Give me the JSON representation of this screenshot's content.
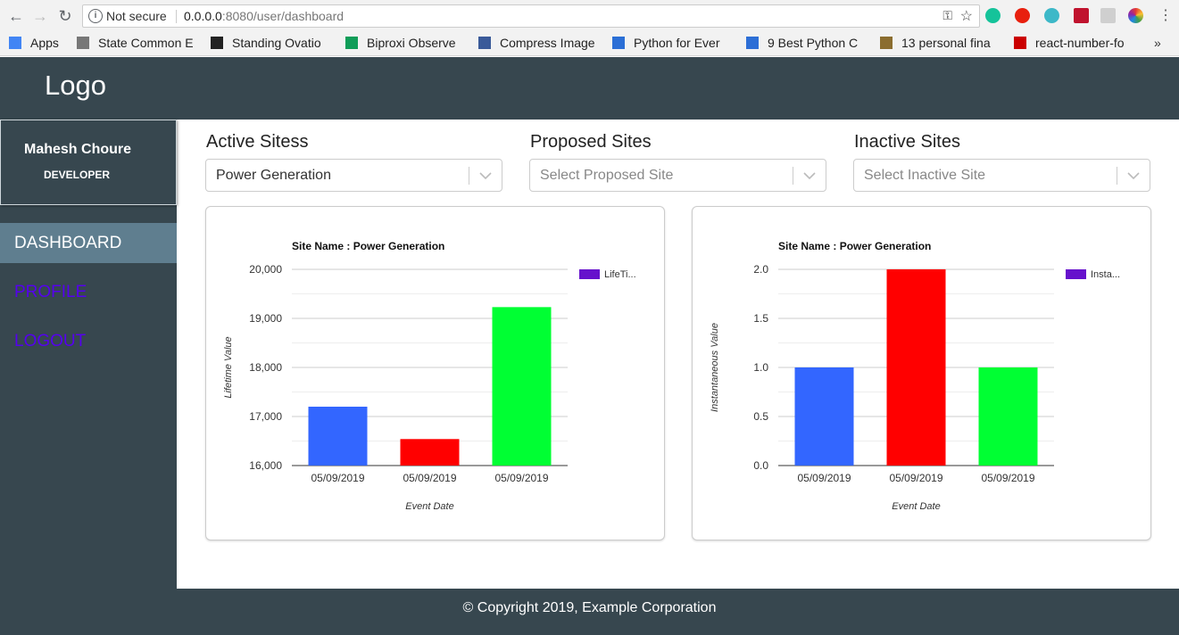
{
  "browser": {
    "security": "Not secure",
    "url_host": "0.0.0.0",
    "url_rest": ":8080/user/dashboard",
    "bookmarks": [
      {
        "label": "Apps",
        "icon": "apps-grid-icon",
        "color": "#4285f4"
      },
      {
        "label": "State Common E",
        "icon": "emblem-icon",
        "color": "#777777"
      },
      {
        "label": "Standing Ovatio",
        "icon": "six-icon",
        "color": "#222222"
      },
      {
        "label": "Biproxi Observe",
        "icon": "sheets-icon",
        "color": "#0f9d58"
      },
      {
        "label": "Compress Image",
        "icon": "image-icon",
        "color": "#3a5a99"
      },
      {
        "label": "Python for Ever",
        "icon": "infinity-icon",
        "color": "#2b6fd6"
      },
      {
        "label": "9 Best Python C",
        "icon": "dd-icon",
        "color": "#2d6fd6"
      },
      {
        "label": "13 personal fina",
        "icon": "et-icon",
        "color": "#8b6d2f"
      },
      {
        "label": "react-number-fo",
        "icon": "npm-icon",
        "color": "#cb0000"
      }
    ],
    "more": "»"
  },
  "app": {
    "logo": "Logo",
    "user": {
      "name": "Mahesh Choure",
      "role": "DEVELOPER"
    },
    "nav": [
      {
        "label": "DASHBOARD",
        "active": true
      },
      {
        "label": "PROFILE",
        "active": false
      },
      {
        "label": "LOGOUT",
        "active": false
      }
    ],
    "footer": "© Copyright 2019, Example Corporation"
  },
  "filters": [
    {
      "label": "Active Sitess",
      "value": "Power Generation",
      "placeholder": false
    },
    {
      "label": "Proposed Sites",
      "value": "Select Proposed Site",
      "placeholder": true
    },
    {
      "label": "Inactive Sites",
      "value": "Select Inactive Site",
      "placeholder": true
    }
  ],
  "chart_data": [
    {
      "type": "bar",
      "title": "Site Name : Power Generation",
      "xlabel": "Event Date",
      "ylabel": "Lifetime Value",
      "categories": [
        "05/09/2019",
        "05/09/2019",
        "05/09/2019"
      ],
      "values": [
        17200,
        16540,
        19230
      ],
      "colors": [
        "#3366ff",
        "#ff0000",
        "#00ff33"
      ],
      "legend": "LifeTi...",
      "legend_color": "#6611cc",
      "ylim": [
        16000,
        20000
      ],
      "ticks": [
        16000,
        17000,
        18000,
        19000,
        20000
      ],
      "tick_labels": [
        "16,000",
        "17,000",
        "18,000",
        "19,000",
        "20,000"
      ]
    },
    {
      "type": "bar",
      "title": "Site Name : Power Generation",
      "xlabel": "Event Date",
      "ylabel": "Instantaneous Value",
      "categories": [
        "05/09/2019",
        "05/09/2019",
        "05/09/2019"
      ],
      "values": [
        1.0,
        2.0,
        1.0
      ],
      "colors": [
        "#3366ff",
        "#ff0000",
        "#00ff33"
      ],
      "legend": "Insta...",
      "legend_color": "#6611cc",
      "ylim": [
        0,
        2
      ],
      "ticks": [
        0,
        0.5,
        1,
        1.5,
        2
      ],
      "tick_labels": [
        "0.0",
        "0.5",
        "1.0",
        "1.5",
        "2.0"
      ]
    }
  ]
}
